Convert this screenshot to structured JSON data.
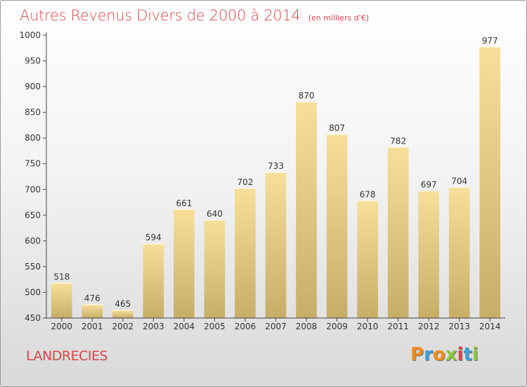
{
  "header": {
    "title": "Autres Revenus Divers de 2000 à 2014",
    "subtitle": "(en milliers d'€)"
  },
  "footer": {
    "location": "LANDRECIES",
    "logo_text": "Proxiti"
  },
  "colors": {
    "title": "#d8464a",
    "bar_top": "#f7df9a",
    "bar_bottom": "#c8ad67",
    "logo_letters": [
      "#f08a1c",
      "#3aa0d8",
      "#f08a1c",
      "#8cc63f",
      "#d8464a",
      "#3aa0d8",
      "#8cc63f"
    ]
  },
  "chart_data": {
    "type": "bar",
    "title": "Autres Revenus Divers de 2000 à 2014",
    "xlabel": "",
    "ylabel": "",
    "categories": [
      "2000",
      "2001",
      "2002",
      "2003",
      "2004",
      "2005",
      "2006",
      "2007",
      "2008",
      "2009",
      "2010",
      "2011",
      "2012",
      "2013",
      "2014"
    ],
    "values": [
      518,
      476,
      465,
      594,
      661,
      640,
      702,
      733,
      870,
      807,
      678,
      782,
      697,
      704,
      977
    ],
    "ylim": [
      450,
      1000
    ],
    "yticks": [
      450,
      500,
      550,
      600,
      650,
      700,
      750,
      800,
      850,
      900,
      950,
      1000
    ],
    "grid": false,
    "legend": "none"
  }
}
